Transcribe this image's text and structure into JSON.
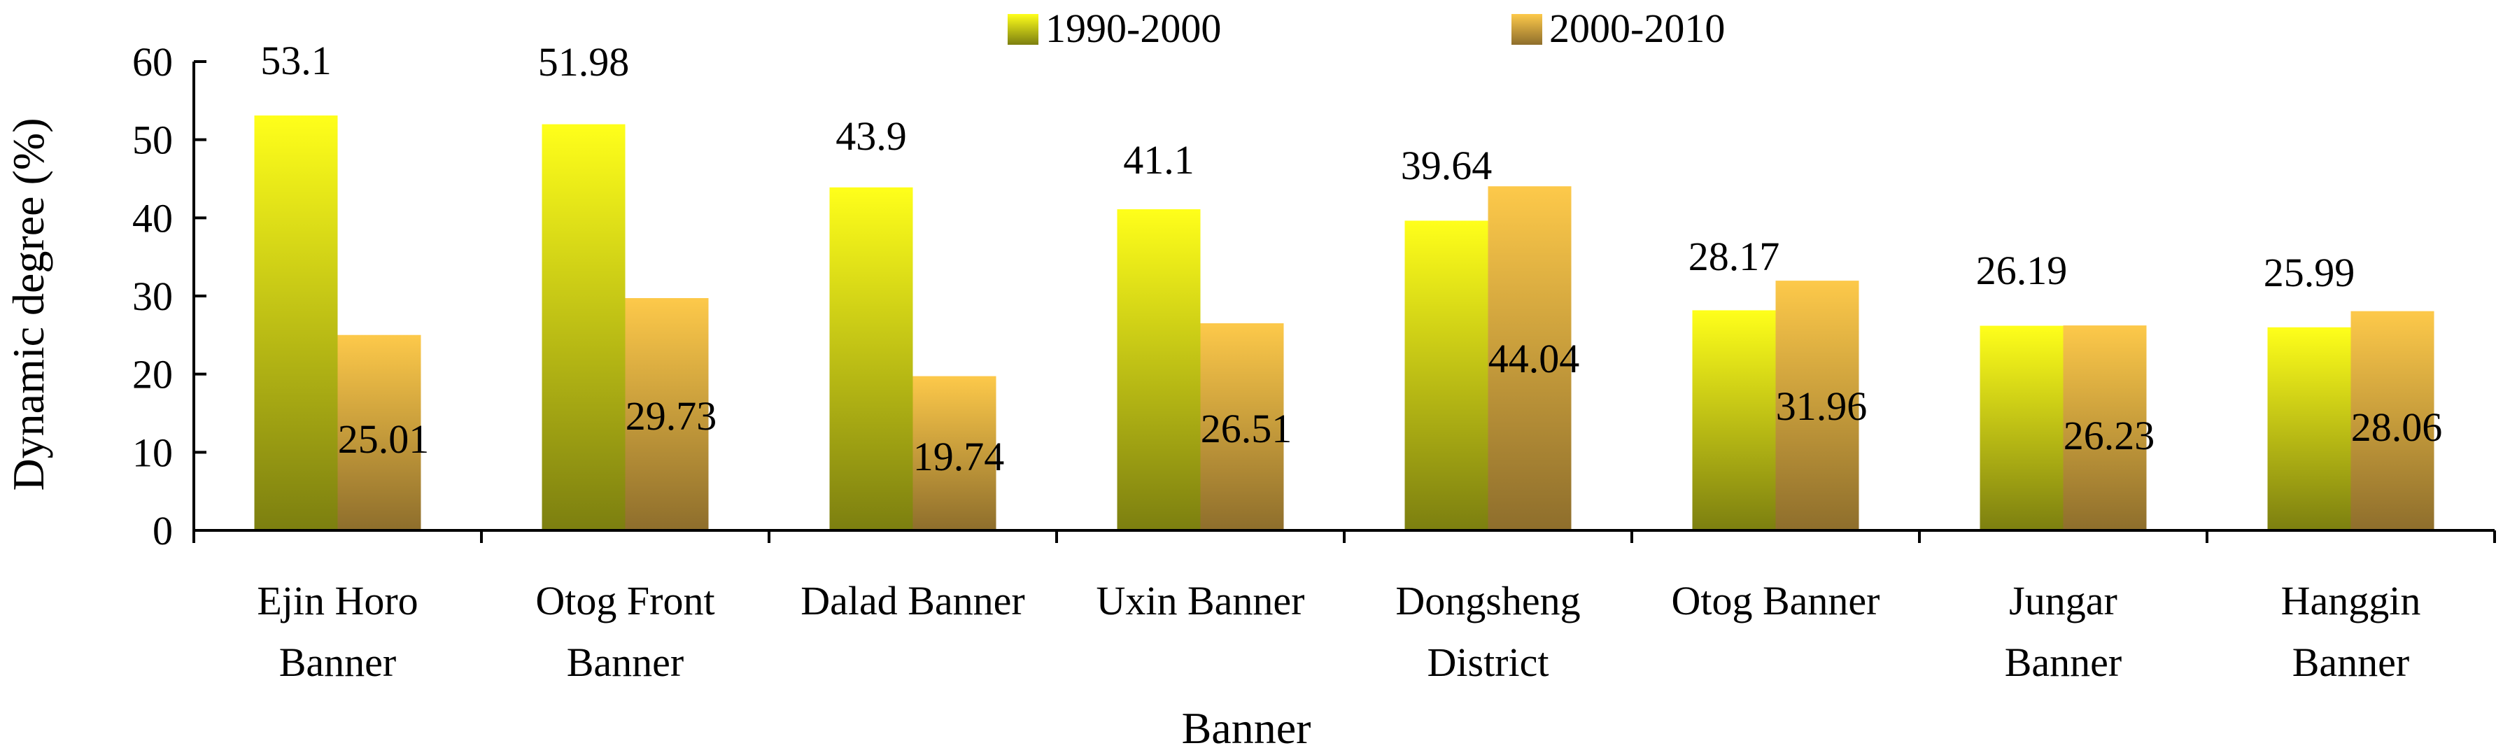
{
  "chart_data": {
    "type": "bar",
    "categories": [
      [
        "Ejin Horo",
        "Banner"
      ],
      [
        "Otog Front",
        "Banner"
      ],
      [
        "Dalad Banner"
      ],
      [
        "Uxin Banner"
      ],
      [
        "Dongsheng",
        "District"
      ],
      [
        "Otog Banner"
      ],
      [
        "Jungar",
        "Banner"
      ],
      [
        "Hanggin",
        "Banner"
      ]
    ],
    "series": [
      {
        "name": "1990-2000",
        "values": [
          53.1,
          51.98,
          43.9,
          41.1,
          39.64,
          28.17,
          26.19,
          25.99
        ],
        "labels": [
          "53.1",
          "51.98",
          "43.9",
          "41.1",
          "39.64",
          "28.17",
          "26.19",
          "25.99"
        ]
      },
      {
        "name": "2000-2010",
        "values": [
          25.01,
          29.73,
          19.74,
          26.51,
          44.04,
          31.96,
          26.23,
          28.06
        ],
        "labels": [
          "25.01",
          "29.73",
          "19.74",
          "26.51",
          "44.04",
          "31.96",
          "26.23",
          "28.06"
        ]
      }
    ],
    "xlabel": "Banner",
    "ylabel": "Dynamic degree (%)",
    "ylim": [
      0,
      60
    ],
    "yticks": [
      "0",
      "10",
      "20",
      "30",
      "40",
      "50",
      "60"
    ],
    "legend_position": "top-center",
    "colors": {
      "series1_top": "#ffff1a",
      "series1_bottom": "#7c7f10",
      "series2_top": "#fdc94a",
      "series2_bottom": "#8e6e2c",
      "axis": "#000000"
    }
  }
}
